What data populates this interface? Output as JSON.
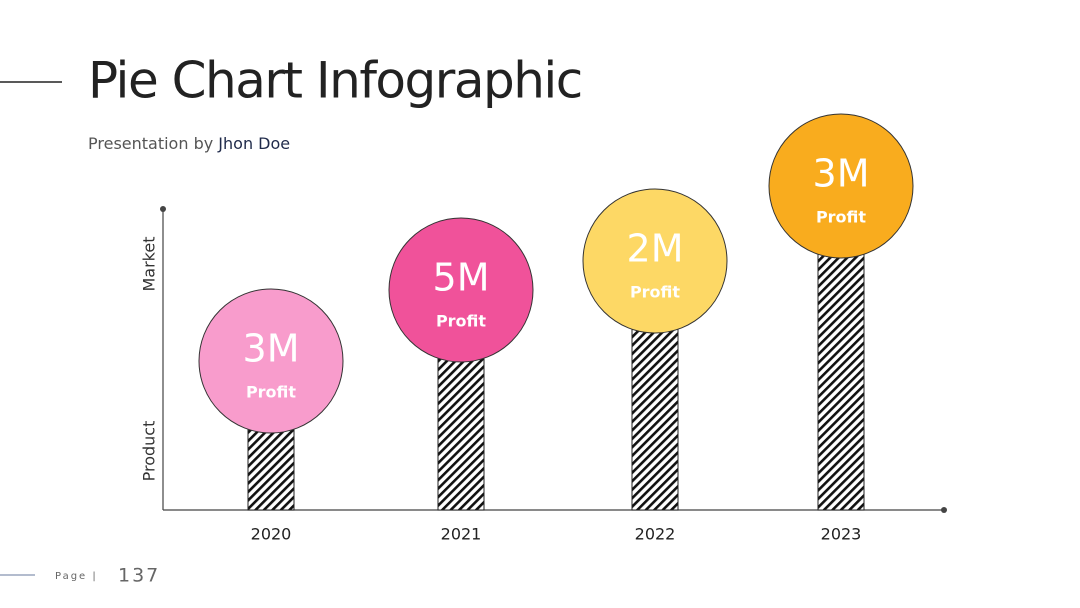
{
  "header": {
    "title": "Pie Chart Infographic",
    "subtitle_prefix": "Presentation by",
    "author": "Jhon Doe"
  },
  "axes": {
    "y_top_label": "Market",
    "y_bottom_label": "Product"
  },
  "items": [
    {
      "year": "2020",
      "value": "3M",
      "caption": "Profit",
      "color": "#f89ccc"
    },
    {
      "year": "2021",
      "value": "5M",
      "caption": "Profit",
      "color": "#f0529a"
    },
    {
      "year": "2022",
      "value": "2M",
      "caption": "Profit",
      "color": "#fdd865"
    },
    {
      "year": "2023",
      "value": "3M",
      "caption": "Profit",
      "color": "#f9ac1e"
    }
  ],
  "footer": {
    "page_word": "Page |",
    "page_number": "137"
  }
}
